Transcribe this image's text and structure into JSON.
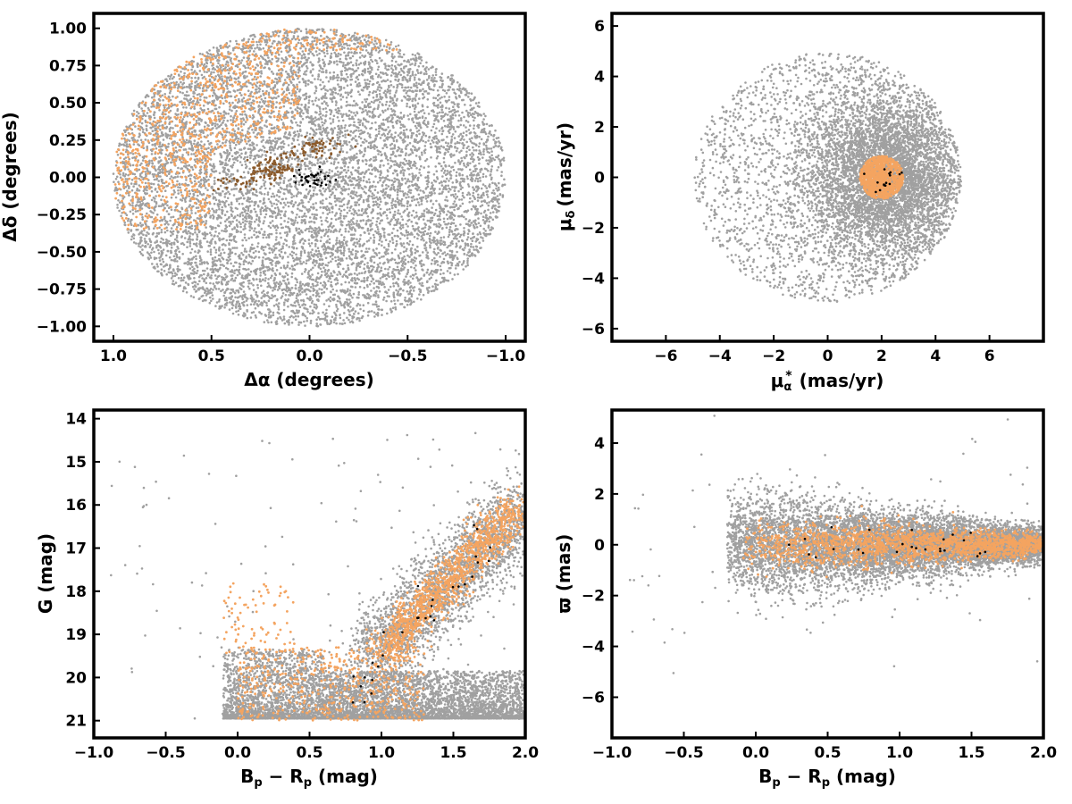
{
  "colors": {
    "field": "#a0a0a0",
    "members": "#f4a460",
    "core": "#8b5a2b",
    "highlight": "#000000"
  },
  "chart_data": [
    {
      "type": "scatter",
      "id": "sky",
      "xlabel": "Δα (degrees)",
      "ylabel": "Δδ (degrees)",
      "xlim": [
        1.1,
        -1.1
      ],
      "ylim": [
        -1.1,
        1.1
      ],
      "x_inverted": true,
      "xticks": [
        "1.0",
        "0.5",
        "0.0",
        "−0.5",
        "−1.0"
      ],
      "xtick_values": [
        1.0,
        0.5,
        0.0,
        -0.5,
        -1.0
      ],
      "yticks": [
        "−1.00",
        "−0.75",
        "−0.50",
        "−0.25",
        "0.00",
        "0.25",
        "0.50",
        "0.75",
        "1.00"
      ],
      "ytick_values": [
        -1.0,
        -0.75,
        -0.5,
        -0.25,
        0.0,
        0.25,
        0.5,
        0.75,
        1.0
      ],
      "grid": false,
      "series": [
        {
          "color_key": "field",
          "distribution": "uniform disk, radius 1.0 deg, centered (0,0)",
          "approx_points": 9000
        },
        {
          "color_key": "members",
          "distribution": "concentrated in upper-left wedge: Δα 0.05 to 1.0, Δδ −0.3 to 1.0; extra band along Δδ 0.85–1.0 near Δα −0.3 to 0.3",
          "approx_points": 3500
        },
        {
          "color_key": "core",
          "distribution": "clumps near (0.2, 0.05), (−0.05, 0.2), (0.35, −0.02)",
          "approx_points": 150
        },
        {
          "color_key": "highlight",
          "distribution": "small clump near (−0.02, −0.02)",
          "approx_points": 40
        }
      ]
    },
    {
      "type": "scatter",
      "id": "proper-motion",
      "xlabel": "μα* (mas/yr)",
      "xlabel_main": "μ",
      "xlabel_sub": "α",
      "xlabel_sup": "*",
      "xlabel_unit": "(mas/yr)",
      "ylabel": "μδ (mas/yr)",
      "ylabel_main": "μ",
      "ylabel_sub": "δ",
      "ylabel_unit": "(mas/yr)",
      "xlim": [
        -8.0,
        8.0
      ],
      "ylim": [
        -6.5,
        6.5
      ],
      "xticks": [
        "−6",
        "−4",
        "−2",
        "0",
        "2",
        "4",
        "6"
      ],
      "xtick_values": [
        -6,
        -4,
        -2,
        0,
        2,
        4,
        6
      ],
      "yticks": [
        "−6",
        "−4",
        "−2",
        "0",
        "2",
        "4",
        "6"
      ],
      "ytick_values": [
        -6,
        -4,
        -2,
        0,
        2,
        4,
        6
      ],
      "grid": false,
      "series": [
        {
          "color_key": "field",
          "distribution": "clipped to circle radius 5 around (0,0); dense near (2.2,0), sparse toward −5",
          "approx_points": 7000
        },
        {
          "color_key": "members",
          "distribution": "compact disk radius ~0.8 around (2.0, 0.0)",
          "approx_points": 900
        },
        {
          "color_key": "highlight",
          "distribution": "within radius 0.4 around (2.1, −0.1)",
          "approx_points": 15
        }
      ]
    },
    {
      "type": "scatter",
      "id": "cmd",
      "xlabel": "Bp − Rp (mag)",
      "xlabel_parts": [
        "B",
        "p",
        " − R",
        "p",
        " (mag)"
      ],
      "ylabel": "G (mag)",
      "xlim": [
        -1.0,
        2.0
      ],
      "ylim": [
        21.4,
        13.8
      ],
      "y_inverted": true,
      "xticks": [
        "−1.0",
        "−0.5",
        "0.0",
        "0.5",
        "1.0",
        "1.5",
        "2.0"
      ],
      "xtick_values": [
        -1.0,
        -0.5,
        0.0,
        0.5,
        1.0,
        1.5,
        2.0
      ],
      "yticks": [
        "14",
        "15",
        "16",
        "17",
        "18",
        "19",
        "20",
        "21"
      ],
      "ytick_values": [
        14,
        15,
        16,
        17,
        18,
        19,
        20,
        21
      ],
      "grid": false,
      "series": [
        {
          "color_key": "field",
          "distribution": "broad band G 19.5–21 across colour 0–2, plus diagonal sequence from (1.0,19) to (2.0,16)",
          "approx_points": 8000
        },
        {
          "color_key": "members",
          "distribution": "diagonal sequence from (1.0,19.3) to (1.95,16.1), plus faint clump G 19–21",
          "approx_points": 1800
        },
        {
          "color_key": "highlight",
          "distribution": "along sequence",
          "approx_points": 30
        }
      ]
    },
    {
      "type": "scatter",
      "id": "parallax",
      "xlabel": "Bp − Rp (mag)",
      "xlabel_parts": [
        "B",
        "p",
        " − R",
        "p",
        " (mag)"
      ],
      "ylabel": "ϖ (mas)",
      "xlim": [
        -1.0,
        2.0
      ],
      "ylim": [
        -7.6,
        5.3
      ],
      "xticks": [
        "−1.0",
        "−0.5",
        "0.0",
        "0.5",
        "1.0",
        "1.5",
        "2.0"
      ],
      "xtick_values": [
        -1.0,
        -0.5,
        0.0,
        0.5,
        1.0,
        1.5,
        2.0
      ],
      "yticks": [
        "−6",
        "−4",
        "−2",
        "0",
        "2",
        "4"
      ],
      "ytick_values": [
        -6,
        -4,
        -2,
        0,
        2,
        4
      ],
      "grid": false,
      "series": [
        {
          "color_key": "field",
          "distribution": "horizontal band around ϖ=0, scatter σ≈0.9 at blue end narrowing to 0.25 at red end",
          "approx_points": 8000
        },
        {
          "color_key": "members",
          "distribution": "band around ϖ=0 σ≈0.4 narrowing toward colour 2",
          "approx_points": 1800
        },
        {
          "color_key": "highlight",
          "distribution": "near ϖ=0 across colour 0.2–1.6",
          "approx_points": 25
        }
      ]
    }
  ]
}
